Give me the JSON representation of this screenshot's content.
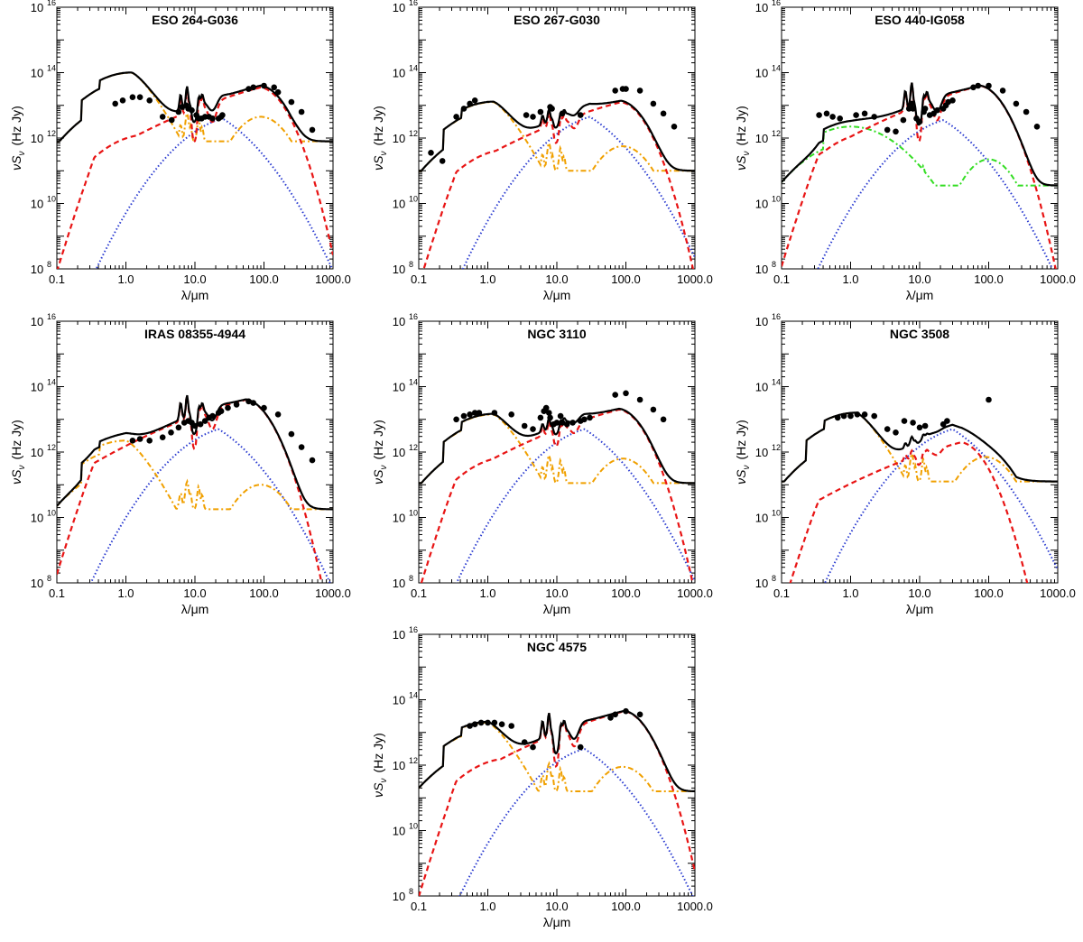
{
  "figure": {
    "xlabel": "λ/μm",
    "ylabel": "νS",
    "ylabel_sub": "ν",
    "ylabel_unit": "(Hz Jy)"
  },
  "colors": {
    "total": "#000000",
    "starburst": "#e81414",
    "disc_host": "#f0a000",
    "spheroid_host": "#33dd22",
    "agn": "#2a3bd0",
    "points": "#000000"
  },
  "chart_data": [
    {
      "type": "line",
      "xscale": "log",
      "yscale": "log",
      "title": "ESO 264-G036",
      "xlabel": "λ/μm",
      "ylabel": "νSν (Hz Jy)",
      "xlim": [
        0.1,
        1000
      ],
      "ylim": [
        100000000.0,
        1e+16
      ],
      "x_ticklabels": [
        "0.1",
        "1.0",
        "10.0",
        "100.0",
        "1000.0"
      ],
      "y_ticklabels": [
        "10^8",
        "10^10",
        "10^12",
        "10^14",
        "10^16"
      ],
      "legend": "none",
      "host_type": "disc",
      "params": {
        "host": [
          14.0,
          1.2
        ],
        "sb": [
          13.55,
          90
        ],
        "agn": [
          12.6,
          25
        ],
        "pah": 1.0
      },
      "points": [
        [
          0.7,
          13.05
        ],
        [
          0.9,
          13.15
        ],
        [
          1.25,
          13.25
        ],
        [
          1.6,
          13.25
        ],
        [
          2.2,
          13.15
        ],
        [
          3.4,
          12.65
        ],
        [
          4.6,
          12.55
        ],
        [
          5.8,
          12.8
        ],
        [
          6.5,
          12.95
        ],
        [
          7.5,
          13.0
        ],
        [
          8.0,
          12.9
        ],
        [
          9.0,
          12.85
        ],
        [
          10.5,
          12.7
        ],
        [
          11.5,
          12.6
        ],
        [
          12.5,
          12.6
        ],
        [
          14,
          12.65
        ],
        [
          16,
          12.65
        ],
        [
          18,
          12.6
        ],
        [
          22,
          12.6
        ],
        [
          24,
          12.65
        ],
        [
          25,
          12.7
        ],
        [
          60,
          13.5
        ],
        [
          70,
          13.55
        ],
        [
          100,
          13.6
        ],
        [
          140,
          13.55
        ],
        [
          160,
          13.4
        ],
        [
          250,
          13.1
        ],
        [
          350,
          12.8
        ],
        [
          500,
          12.25
        ]
      ]
    },
    {
      "type": "line",
      "xscale": "log",
      "yscale": "log",
      "title": "ESO 267-G030",
      "xlabel": "λ/μm",
      "ylabel": "νSν (Hz Jy)",
      "xlim": [
        0.1,
        1000
      ],
      "ylim": [
        100000000.0,
        1e+16
      ],
      "x_ticklabels": [
        "0.1",
        "1.0",
        "10.0",
        "100.0",
        "1000.0"
      ],
      "y_ticklabels": [
        "10^8",
        "10^10",
        "10^12",
        "10^14",
        "10^16"
      ],
      "legend": "none",
      "host_type": "disc",
      "params": {
        "host": [
          13.1,
          1.2
        ],
        "sb": [
          13.1,
          85
        ],
        "agn": [
          12.65,
          30
        ],
        "pah": 0.6
      },
      "points": [
        [
          0.15,
          11.55
        ],
        [
          0.22,
          11.3
        ],
        [
          0.35,
          12.65
        ],
        [
          0.45,
          12.9
        ],
        [
          0.55,
          13.05
        ],
        [
          0.65,
          13.15
        ],
        [
          3.6,
          12.7
        ],
        [
          4.5,
          12.65
        ],
        [
          5.8,
          12.8
        ],
        [
          8,
          12.95
        ],
        [
          8.5,
          12.9
        ],
        [
          12,
          12.75
        ],
        [
          22,
          12.7
        ],
        [
          70,
          13.45
        ],
        [
          90,
          13.5
        ],
        [
          100,
          13.5
        ],
        [
          160,
          13.45
        ],
        [
          250,
          13.05
        ],
        [
          350,
          12.75
        ],
        [
          500,
          12.35
        ]
      ]
    },
    {
      "type": "line",
      "xscale": "log",
      "yscale": "log",
      "title": "ESO 440-IG058",
      "xlabel": "λ/μm",
      "ylabel": "νSν (Hz Jy)",
      "xlim": [
        0.1,
        1000
      ],
      "ylim": [
        100000000.0,
        1e+16
      ],
      "x_ticklabels": [
        "0.1",
        "1.0",
        "10.0",
        "100.0",
        "1000.0"
      ],
      "y_ticklabels": [
        "10^8",
        "10^10",
        "10^12",
        "10^14",
        "10^16"
      ],
      "legend": "none",
      "host_type": "spheroid",
      "params": {
        "host": [
          12.35,
          1.0
        ],
        "sb": [
          13.6,
          75
        ],
        "agn": [
          12.55,
          22
        ],
        "pah": 1.1
      },
      "points": [
        [
          0.35,
          12.7
        ],
        [
          0.45,
          12.75
        ],
        [
          0.55,
          12.65
        ],
        [
          0.7,
          12.6
        ],
        [
          1.2,
          12.7
        ],
        [
          1.6,
          12.75
        ],
        [
          2.2,
          12.65
        ],
        [
          3.4,
          12.25
        ],
        [
          4.5,
          12.2
        ],
        [
          5.8,
          12.55
        ],
        [
          7,
          12.9
        ],
        [
          7.7,
          13.05
        ],
        [
          8,
          12.9
        ],
        [
          9,
          12.6
        ],
        [
          10,
          12.5
        ],
        [
          11.5,
          12.8
        ],
        [
          12,
          12.9
        ],
        [
          14,
          12.7
        ],
        [
          16,
          12.75
        ],
        [
          18,
          12.85
        ],
        [
          22,
          12.9
        ],
        [
          24,
          13.0
        ],
        [
          26,
          13.1
        ],
        [
          30,
          13.15
        ],
        [
          60,
          13.55
        ],
        [
          70,
          13.6
        ],
        [
          100,
          13.6
        ],
        [
          160,
          13.45
        ],
        [
          250,
          13.05
        ],
        [
          350,
          12.8
        ],
        [
          500,
          12.35
        ]
      ]
    },
    {
      "type": "line",
      "xscale": "log",
      "yscale": "log",
      "title": "IRAS 08355-4944",
      "xlabel": "λ/μm",
      "ylabel": "νSν (Hz Jy)",
      "xlim": [
        0.1,
        1000
      ],
      "ylim": [
        100000000.0,
        1e+16
      ],
      "x_ticklabels": [
        "0.1",
        "1.0",
        "10.0",
        "100.0",
        "1000.0"
      ],
      "y_ticklabels": [
        "10^8",
        "10^10",
        "10^12",
        "10^14",
        "10^16"
      ],
      "legend": "none",
      "host_type": "disc",
      "params": {
        "host": [
          12.35,
          1.0
        ],
        "sb": [
          13.6,
          55
        ],
        "agn": [
          12.7,
          22
        ],
        "pah": 1.0
      },
      "points": [
        [
          1.25,
          12.35
        ],
        [
          1.6,
          12.4
        ],
        [
          2.2,
          12.35
        ],
        [
          3.4,
          12.45
        ],
        [
          4.5,
          12.6
        ],
        [
          5.8,
          12.75
        ],
        [
          7,
          12.9
        ],
        [
          8,
          12.95
        ],
        [
          9,
          12.9
        ],
        [
          10,
          12.8
        ],
        [
          12,
          12.85
        ],
        [
          14,
          12.95
        ],
        [
          16,
          13.05
        ],
        [
          18,
          13.1
        ],
        [
          22,
          13.2
        ],
        [
          24,
          13.25
        ],
        [
          30,
          13.35
        ],
        [
          40,
          13.45
        ],
        [
          60,
          13.55
        ],
        [
          70,
          13.5
        ],
        [
          100,
          13.35
        ],
        [
          160,
          13.15
        ],
        [
          250,
          12.55
        ],
        [
          350,
          12.15
        ],
        [
          500,
          11.75
        ]
      ]
    },
    {
      "type": "line",
      "xscale": "log",
      "yscale": "log",
      "title": "NGC 3110",
      "xlabel": "λ/μm",
      "ylabel": "νSν (Hz Jy)",
      "xlim": [
        0.1,
        1000
      ],
      "ylim": [
        100000000.0,
        1e+16
      ],
      "x_ticklabels": [
        "0.1",
        "1.0",
        "10.0",
        "100.0",
        "1000.0"
      ],
      "y_ticklabels": [
        "10^8",
        "10^10",
        "10^12",
        "10^14",
        "10^16"
      ],
      "legend": "none",
      "host_type": "disc",
      "params": {
        "host": [
          13.15,
          1.2
        ],
        "sb": [
          13.3,
          80
        ],
        "agn": [
          12.7,
          25
        ],
        "pah": 0.5
      },
      "points": [
        [
          0.35,
          13.0
        ],
        [
          0.45,
          13.1
        ],
        [
          0.55,
          13.15
        ],
        [
          0.65,
          13.2
        ],
        [
          0.75,
          13.2
        ],
        [
          1.25,
          13.2
        ],
        [
          2.2,
          13.15
        ],
        [
          3.4,
          12.8
        ],
        [
          4.5,
          12.7
        ],
        [
          5.8,
          13.05
        ],
        [
          6.5,
          13.25
        ],
        [
          7,
          13.35
        ],
        [
          7.7,
          13.2
        ],
        [
          8,
          13.05
        ],
        [
          9,
          12.85
        ],
        [
          10,
          12.9
        ],
        [
          11.3,
          13.1
        ],
        [
          12,
          12.9
        ],
        [
          14,
          12.85
        ],
        [
          17,
          12.9
        ],
        [
          22,
          12.95
        ],
        [
          25,
          13.0
        ],
        [
          30,
          13.05
        ],
        [
          70,
          13.75
        ],
        [
          100,
          13.8
        ],
        [
          160,
          13.6
        ],
        [
          250,
          13.3
        ],
        [
          350,
          13.0
        ]
      ]
    },
    {
      "type": "line",
      "xscale": "log",
      "yscale": "log",
      "title": "NGC 3508",
      "xlabel": "λ/μm",
      "ylabel": "νSν (Hz Jy)",
      "xlim": [
        0.1,
        1000
      ],
      "ylim": [
        100000000.0,
        1e+16
      ],
      "x_ticklabels": [
        "0.1",
        "1.0",
        "10.0",
        "100.0",
        "1000.0"
      ],
      "y_ticklabels": [
        "10^8",
        "10^10",
        "10^12",
        "10^14",
        "10^16"
      ],
      "legend": "none",
      "host_type": "disc",
      "params": {
        "host": [
          13.2,
          1.2
        ],
        "sb": [
          12.3,
          40
        ],
        "agn": [
          12.7,
          30
        ],
        "pah": 0.3
      },
      "points": [
        [
          0.65,
          13.05
        ],
        [
          0.8,
          13.1
        ],
        [
          1.0,
          13.1
        ],
        [
          1.25,
          13.15
        ],
        [
          1.6,
          13.15
        ],
        [
          2.2,
          13.1
        ],
        [
          3.4,
          12.7
        ],
        [
          4.5,
          12.6
        ],
        [
          6.0,
          12.95
        ],
        [
          8,
          12.9
        ],
        [
          10,
          12.75
        ],
        [
          12,
          12.8
        ],
        [
          22,
          12.85
        ],
        [
          25,
          12.95
        ],
        [
          100,
          13.6
        ]
      ]
    },
    {
      "type": "line",
      "xscale": "log",
      "yscale": "log",
      "title": "NGC 4575",
      "xlabel": "λ/μm",
      "ylabel": "νSν (Hz Jy)",
      "xlim": [
        0.1,
        1000
      ],
      "ylim": [
        100000000.0,
        1e+16
      ],
      "x_ticklabels": [
        "0.1",
        "1.0",
        "10.0",
        "100.0",
        "1000.0"
      ],
      "y_ticklabels": [
        "10^8",
        "10^10",
        "10^12",
        "10^14",
        "10^16"
      ],
      "legend": "none",
      "host_type": "disc",
      "params": {
        "host": [
          13.3,
          1.0
        ],
        "sb": [
          13.65,
          95
        ],
        "agn": [
          12.5,
          25
        ],
        "pah": 1.0
      },
      "points": [
        [
          0.55,
          13.2
        ],
        [
          0.65,
          13.25
        ],
        [
          0.8,
          13.3
        ],
        [
          1.0,
          13.3
        ],
        [
          1.25,
          13.3
        ],
        [
          1.6,
          13.25
        ],
        [
          2.2,
          13.2
        ],
        [
          3.4,
          12.7
        ],
        [
          4.5,
          12.55
        ],
        [
          22,
          12.55
        ],
        [
          60,
          13.45
        ],
        [
          70,
          13.55
        ],
        [
          100,
          13.65
        ],
        [
          160,
          13.55
        ]
      ]
    }
  ]
}
